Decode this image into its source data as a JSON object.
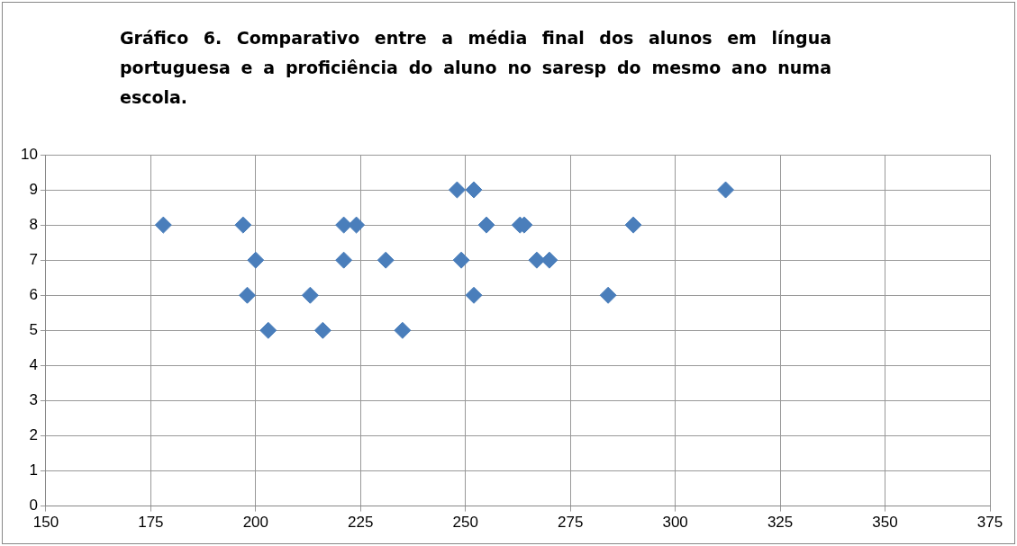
{
  "chart_data": {
    "type": "scatter",
    "title": "Gráfico 6. Comparativo entre a média final dos alunos em língua portuguesa e a proficiência do aluno no saresp do mesmo ano numa escola.",
    "series": [
      {
        "color": "#4a7ebb",
        "x": [
          178,
          197,
          198,
          200,
          203,
          213,
          216,
          221,
          221,
          224,
          231,
          235,
          248,
          249,
          252,
          252,
          255,
          263,
          264,
          267,
          270,
          284,
          290,
          312
        ],
        "values": [
          8,
          8,
          6,
          7,
          5,
          6,
          5,
          8,
          7,
          8,
          7,
          5,
          9,
          7,
          6,
          9,
          8,
          8,
          8,
          7,
          7,
          6,
          8,
          9
        ]
      }
    ],
    "xlim": [
      150,
      375
    ],
    "xticks": [
      150,
      175,
      200,
      225,
      250,
      275,
      300,
      325,
      350,
      375
    ],
    "ylim": [
      0,
      10
    ],
    "yticks": [
      0,
      1,
      2,
      3,
      4,
      5,
      6,
      7,
      8,
      9,
      10
    ],
    "grid": true,
    "legend": false,
    "marker": "diamond"
  }
}
